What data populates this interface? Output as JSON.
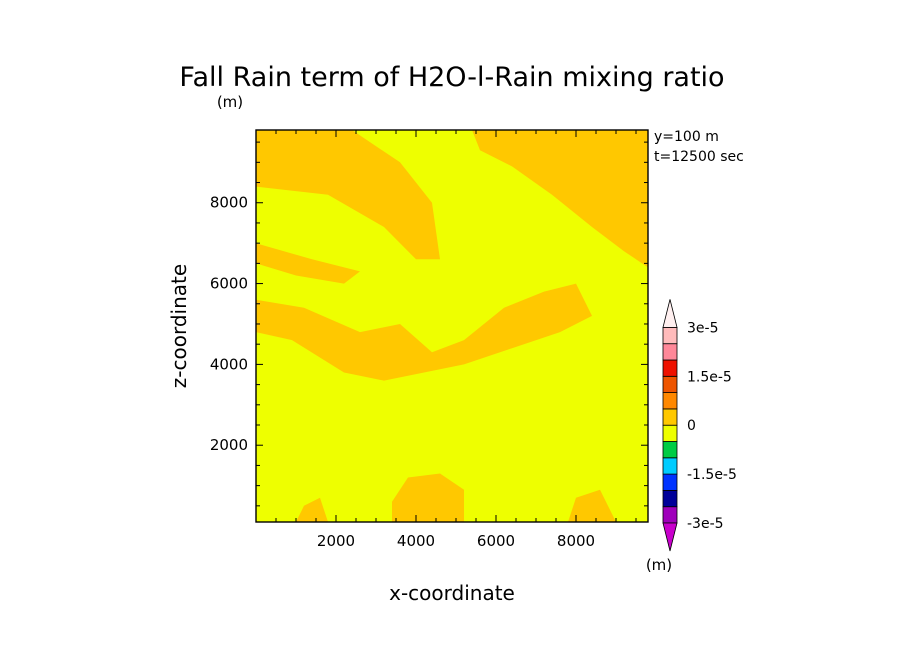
{
  "chart_data": {
    "type": "heatmap",
    "title": "Fall Rain term of H2O-l-Rain mixing ratio",
    "units_label": "(m)",
    "xlabel": "x-coordinate",
    "ylabel": "z-coordinate",
    "info_lines": [
      "y=100 m",
      "t=12500 sec"
    ],
    "xlim": [
      0,
      9800
    ],
    "ylim": [
      100,
      9800
    ],
    "x_ticks": [
      {
        "value": 2000,
        "label": "2000"
      },
      {
        "value": 4000,
        "label": "4000"
      },
      {
        "value": 6000,
        "label": "6000"
      },
      {
        "value": 8000,
        "label": "8000"
      }
    ],
    "y_ticks": [
      {
        "value": 2000,
        "label": "2000"
      },
      {
        "value": 4000,
        "label": "4000"
      },
      {
        "value": 6000,
        "label": "6000"
      },
      {
        "value": 8000,
        "label": "8000"
      }
    ],
    "field_colors": {
      "zero": "#eeff00",
      "slightly_positive": "#ffc800"
    },
    "positive_regions": [
      {
        "name": "top-left band",
        "points": [
          [
            0,
            9800
          ],
          [
            2400,
            9800
          ],
          [
            3600,
            9000
          ],
          [
            4400,
            8000
          ],
          [
            4600,
            6600
          ],
          [
            4000,
            6600
          ],
          [
            3200,
            7400
          ],
          [
            1800,
            8200
          ],
          [
            0,
            8400
          ]
        ]
      },
      {
        "name": "top-right band",
        "points": [
          [
            5400,
            9800
          ],
          [
            9800,
            9800
          ],
          [
            9800,
            6400
          ],
          [
            9200,
            6800
          ],
          [
            8400,
            7400
          ],
          [
            7400,
            8200
          ],
          [
            6400,
            8900
          ],
          [
            5600,
            9300
          ]
        ]
      },
      {
        "name": "middle band",
        "points": [
          [
            1200,
            5400
          ],
          [
            2600,
            4800
          ],
          [
            3600,
            5000
          ],
          [
            4400,
            4300
          ],
          [
            5200,
            4600
          ],
          [
            6200,
            5400
          ],
          [
            7200,
            5800
          ],
          [
            8000,
            6000
          ],
          [
            8400,
            5200
          ],
          [
            7600,
            4800
          ],
          [
            6400,
            4400
          ],
          [
            5200,
            4000
          ],
          [
            4200,
            3800
          ],
          [
            3200,
            3600
          ],
          [
            2200,
            3800
          ],
          [
            900,
            4600
          ],
          [
            0,
            4800
          ],
          [
            0,
            5600
          ]
        ]
      },
      {
        "name": "left upper strip",
        "points": [
          [
            0,
            7000
          ],
          [
            1400,
            6600
          ],
          [
            2600,
            6300
          ],
          [
            2200,
            6000
          ],
          [
            1000,
            6200
          ],
          [
            0,
            6500
          ]
        ]
      },
      {
        "name": "bottom blob",
        "points": [
          [
            3400,
            100
          ],
          [
            5200,
            100
          ],
          [
            5200,
            900
          ],
          [
            4600,
            1300
          ],
          [
            3800,
            1200
          ],
          [
            3400,
            600
          ]
        ]
      },
      {
        "name": "bottom-left blob",
        "points": [
          [
            1000,
            100
          ],
          [
            1800,
            100
          ],
          [
            1600,
            700
          ],
          [
            1200,
            500
          ]
        ]
      },
      {
        "name": "bottom-right blob",
        "points": [
          [
            7800,
            100
          ],
          [
            9000,
            100
          ],
          [
            8600,
            900
          ],
          [
            8000,
            700
          ]
        ]
      }
    ],
    "colorbar": {
      "colors": [
        "#9f00bb",
        "#000099",
        "#0033ff",
        "#00ccff",
        "#00cc44",
        "#eeff00",
        "#ffc800",
        "#ff8800",
        "#ee5500",
        "#ee1100",
        "#ff8899",
        "#ffbbbb"
      ],
      "below_color": "#c800cc",
      "above_color": "#fff0f0",
      "labels": [
        "-3e-5",
        "-1.5e-5",
        "0",
        "1.5e-5",
        "3e-5"
      ],
      "label_boundaries": [
        0,
        3,
        6,
        9,
        12
      ],
      "units": "(m)"
    }
  }
}
